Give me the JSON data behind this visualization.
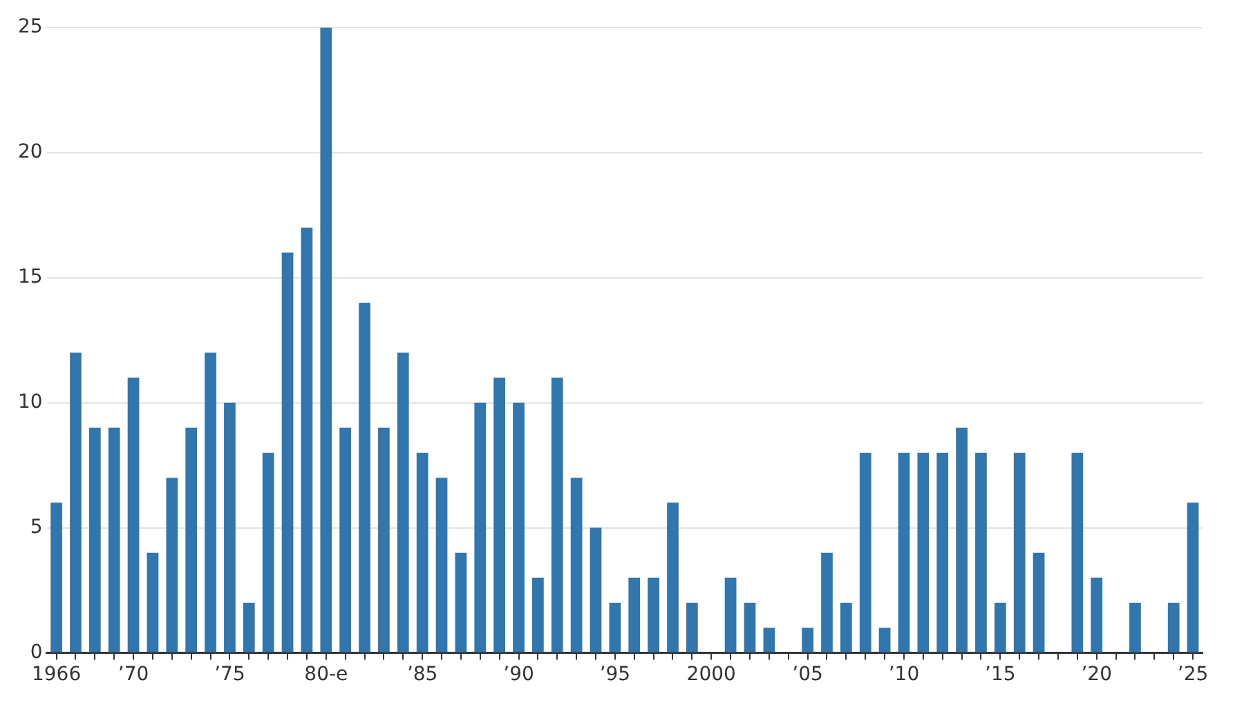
{
  "chart_data": {
    "type": "bar",
    "categories": [
      "1966",
      null,
      null,
      null,
      "’70",
      null,
      null,
      null,
      null,
      "’75",
      null,
      null,
      null,
      null,
      "80-e",
      null,
      null,
      null,
      null,
      "’85",
      null,
      null,
      null,
      null,
      "’90",
      null,
      null,
      null,
      null,
      "’95",
      null,
      null,
      null,
      null,
      "2000",
      null,
      null,
      null,
      null,
      "’05",
      null,
      null,
      null,
      null,
      "’10",
      null,
      null,
      null,
      null,
      "’15",
      null,
      null,
      null,
      null,
      "’20",
      null,
      null,
      null,
      null,
      "’25"
    ],
    "values": [
      6,
      12,
      9,
      9,
      11,
      4,
      7,
      9,
      12,
      10,
      2,
      8,
      16,
      17,
      25,
      9,
      14,
      9,
      12,
      8,
      7,
      4,
      10,
      11,
      10,
      3,
      11,
      7,
      5,
      2,
      3,
      3,
      6,
      2,
      0,
      3,
      2,
      1,
      0,
      1,
      4,
      2,
      8,
      1,
      8,
      8,
      8,
      9,
      8,
      2,
      8,
      4,
      0,
      8,
      3,
      0,
      2,
      0,
      2,
      6
    ],
    "color": "#3276ae",
    "ylim": [
      0,
      25
    ],
    "yticks": [
      0,
      5,
      10,
      15,
      20,
      25
    ],
    "grid": "y"
  }
}
